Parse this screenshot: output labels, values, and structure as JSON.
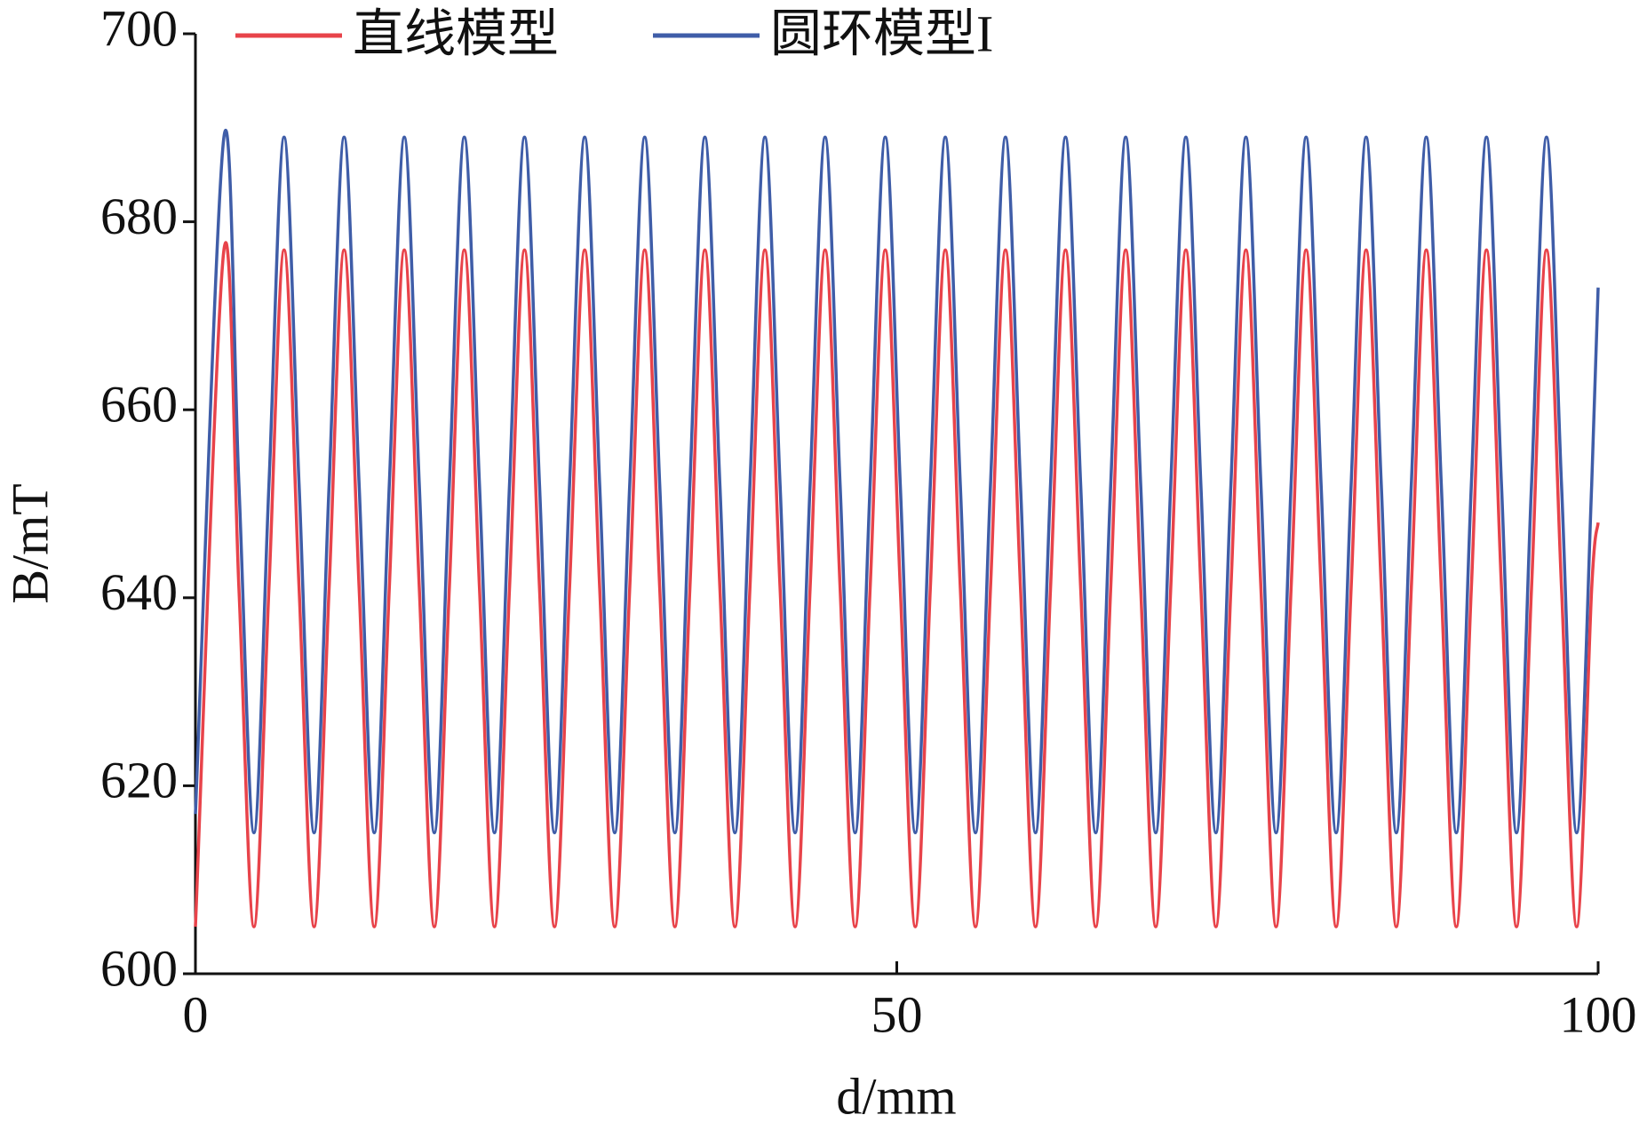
{
  "chart_data": {
    "type": "line",
    "xlabel": "d/mm",
    "ylabel": "B/mT",
    "x": [
      0,
      2.03,
      3.1,
      4.17,
      5.24,
      6.32,
      7.39,
      8.46,
      9.53,
      10.6,
      11.67,
      12.75,
      13.82,
      14.89,
      15.96,
      17.03,
      18.1,
      19.17,
      20.25,
      21.32,
      22.39,
      23.46,
      24.53,
      25.6,
      26.67,
      27.75,
      28.82,
      29.89,
      30.96,
      32.03,
      33.1,
      34.18,
      35.25,
      36.32,
      37.39,
      38.46,
      39.53,
      40.6,
      41.68,
      42.75,
      43.82,
      44.89,
      45.96,
      47.03,
      48.1,
      49.18,
      50.25,
      51.32,
      52.39,
      53.46,
      54.53,
      55.61,
      56.68,
      57.75,
      58.82,
      59.89,
      60.96,
      62.03,
      63.11,
      64.18,
      65.25,
      66.32,
      67.39,
      68.46,
      69.53,
      70.61,
      71.68,
      72.75,
      73.82,
      74.89,
      75.96,
      77.04,
      78.11,
      79.18,
      80.25,
      81.32,
      82.39,
      83.46,
      84.54,
      85.61,
      86.68,
      87.75,
      88.82,
      89.89,
      90.96,
      92.04,
      93.11,
      94.18,
      95.25,
      96.32,
      97.39,
      98.47,
      99.54,
      100
    ],
    "series": [
      {
        "name": "直线模型",
        "color": "#e8434a",
        "values": [
          605,
          677,
          641,
          605,
          641,
          677,
          641,
          605,
          641,
          677,
          641,
          605,
          641,
          677,
          641,
          605,
          641,
          677,
          641,
          605,
          641,
          677,
          641,
          605,
          641,
          677,
          641,
          605,
          641,
          677,
          641,
          605,
          641,
          677,
          641,
          605,
          641,
          677,
          641,
          605,
          641,
          677,
          641,
          605,
          641,
          677,
          641,
          605,
          641,
          677,
          641,
          605,
          641,
          677,
          641,
          605,
          641,
          677,
          641,
          605,
          641,
          677,
          641,
          605,
          641,
          677,
          641,
          605,
          641,
          677,
          641,
          605,
          641,
          677,
          641,
          605,
          641,
          677,
          641,
          605,
          641,
          677,
          641,
          605,
          641,
          677,
          641,
          605,
          641,
          677,
          641,
          605,
          641,
          648
        ]
      },
      {
        "name": "圆环模型I",
        "color": "#3f5da8",
        "values": [
          617,
          689,
          652,
          615,
          652,
          689,
          652,
          615,
          652,
          689,
          652,
          615,
          652,
          689,
          652,
          615,
          652,
          689,
          652,
          615,
          652,
          689,
          652,
          615,
          652,
          689,
          652,
          615,
          652,
          689,
          652,
          615,
          652,
          689,
          652,
          615,
          652,
          689,
          652,
          615,
          652,
          689,
          652,
          615,
          652,
          689,
          652,
          615,
          652,
          689,
          652,
          615,
          652,
          689,
          652,
          615,
          652,
          689,
          652,
          615,
          652,
          689,
          652,
          615,
          652,
          689,
          652,
          615,
          652,
          689,
          652,
          615,
          652,
          689,
          652,
          615,
          652,
          689,
          652,
          615,
          652,
          689,
          652,
          615,
          652,
          689,
          652,
          615,
          652,
          689,
          652,
          615,
          652,
          673
        ]
      }
    ],
    "xlim": [
      0,
      100
    ],
    "xticks": [
      0,
      50,
      100
    ],
    "ylim": [
      600,
      700
    ],
    "yticks": [
      600,
      620,
      640,
      660,
      680,
      700
    ]
  }
}
